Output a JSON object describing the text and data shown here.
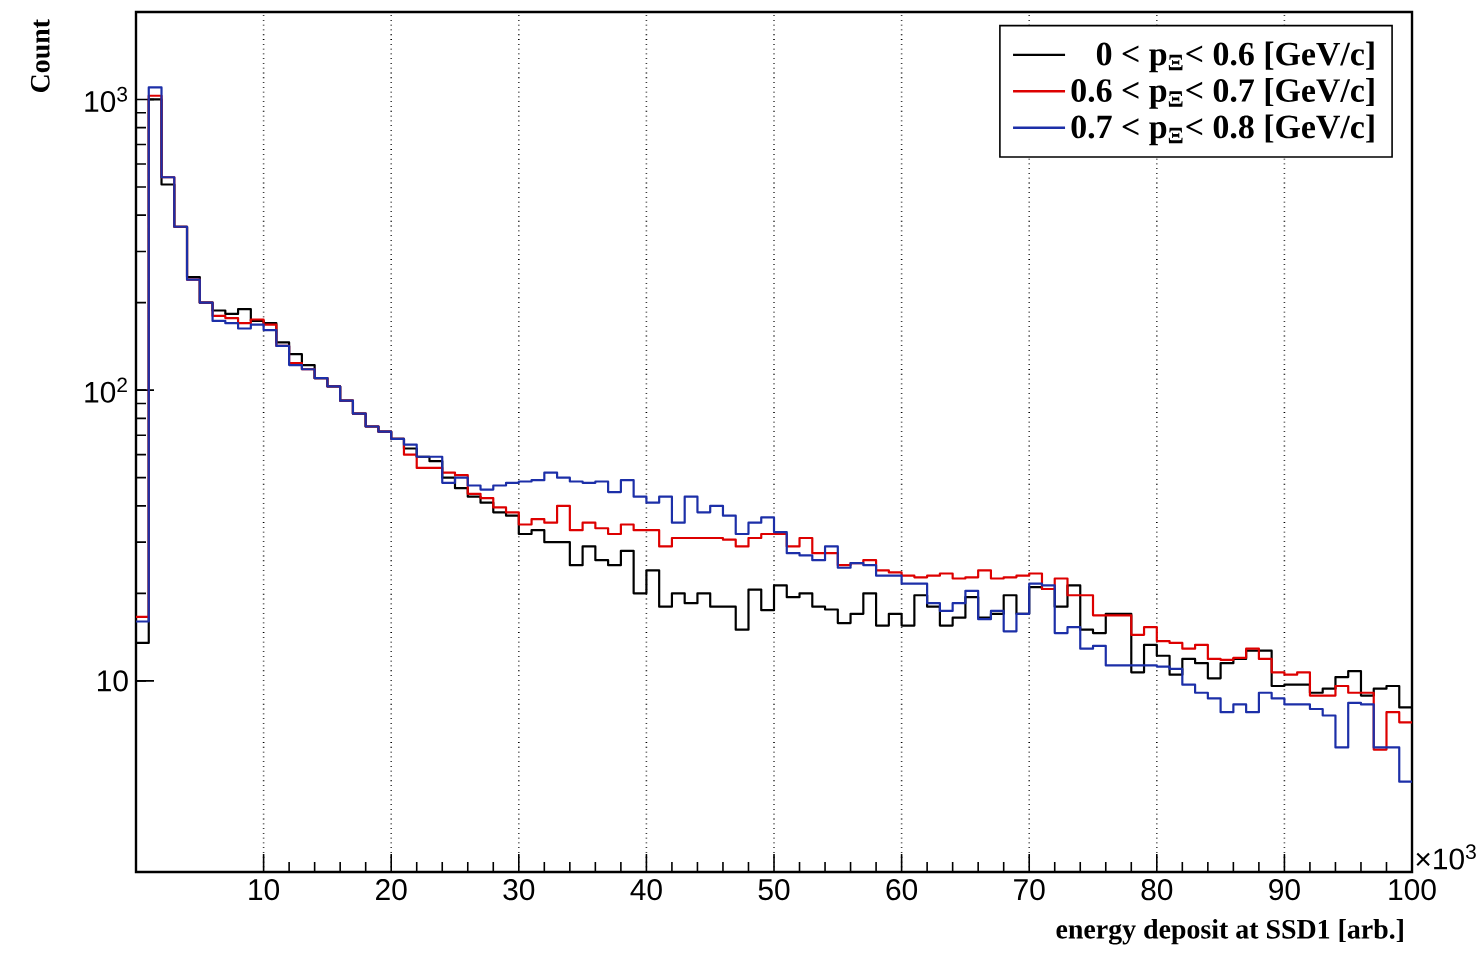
{
  "chart_data": {
    "type": "histogram",
    "xlabel": "energy deposit at SSD1 [arb.]",
    "ylabel": "Count",
    "log": "y",
    "grid": "x",
    "legend": "top right",
    "line_style": "solid",
    "marker": "none",
    "xlim": [
      0,
      100
    ],
    "ylim": [
      2.2,
      2000
    ],
    "xticks": [
      10,
      20,
      30,
      40,
      50,
      60,
      70,
      80,
      90,
      100
    ],
    "yticks": [
      {
        "value": 10,
        "label": "10"
      },
      {
        "value": 100,
        "label": "10$^{2}$"
      },
      {
        "value": 1000,
        "label": "10$^{3}$"
      }
    ],
    "annotations": [
      "×10$^{3}$"
    ],
    "bins": [
      0,
      1,
      2,
      3,
      4,
      5,
      6,
      7,
      8,
      9,
      10,
      11,
      12,
      13,
      14,
      15,
      16,
      17,
      18,
      19,
      20,
      21,
      22,
      23,
      24,
      25,
      26,
      27,
      28,
      29,
      30,
      31,
      32,
      33,
      34,
      35,
      36,
      37,
      38,
      39,
      40,
      41,
      42,
      43,
      44,
      45,
      46,
      47,
      48,
      49,
      50,
      51,
      52,
      53,
      54,
      55,
      56,
      57,
      58,
      59,
      60,
      61,
      62,
      63,
      64,
      65,
      66,
      67,
      68,
      69,
      70,
      71,
      72,
      73,
      74,
      75,
      76,
      77,
      78,
      79,
      80,
      81,
      82,
      83,
      84,
      85,
      86,
      87,
      88,
      89,
      90,
      91,
      92,
      93,
      94,
      95,
      96,
      97,
      98,
      99,
      100
    ],
    "series": [
      {
        "name": "0 < p$_{Ξ}$< 0.6 [GeV/c]",
        "color": "#000000",
        "values": [
          13.5,
          1000,
          510,
          365,
          245,
          200,
          188,
          183,
          190,
          173,
          170,
          146,
          133,
          122,
          110,
          103,
          92,
          83,
          75,
          72,
          68,
          63,
          59,
          57,
          50,
          46,
          43,
          41,
          38,
          37,
          32,
          33,
          30,
          30,
          25,
          29,
          26,
          25,
          28,
          20,
          24,
          18,
          20,
          18.5,
          20,
          18,
          18,
          15,
          20.6,
          17.5,
          21.3,
          19.4,
          20,
          18,
          17.6,
          15.8,
          17,
          20,
          15.5,
          17,
          15.5,
          19.7,
          18,
          15.5,
          16.5,
          19.4,
          16.5,
          17,
          19.7,
          17,
          21,
          20.7,
          18,
          21.3,
          15,
          14.6,
          17,
          17,
          10.7,
          13.3,
          12.2,
          10.5,
          11.9,
          11.5,
          10.2,
          11.5,
          11.9,
          12.7,
          12.7,
          9.6,
          9.7,
          9.7,
          9.1,
          9.4,
          10.3,
          10.8,
          8.9,
          9.4,
          9.6,
          8.1
        ]
      },
      {
        "name": "0.6 < p$_{Ξ}$< 0.7 [GeV/c]",
        "color": "#dd0000",
        "values": [
          16.6,
          1030,
          540,
          365,
          240,
          200,
          180,
          177,
          170,
          175,
          168,
          142,
          124,
          118,
          110,
          103,
          92,
          83,
          75,
          72,
          68,
          60,
          54,
          54,
          52,
          51,
          44,
          42.5,
          39.5,
          38,
          34.5,
          36,
          35,
          40,
          33,
          35,
          33.5,
          32,
          34.5,
          33,
          33,
          29,
          31,
          31,
          31,
          31,
          30.6,
          29,
          31,
          32,
          32,
          29,
          31,
          27.5,
          27.5,
          25,
          25.4,
          26,
          24,
          23.6,
          23,
          22.7,
          23,
          23.4,
          22.5,
          22.7,
          24,
          22.5,
          22.7,
          23,
          23.4,
          20.7,
          22.5,
          19.7,
          19.7,
          16.8,
          16.8,
          16.8,
          14.4,
          15.3,
          13.7,
          13.5,
          12.9,
          13.3,
          11.9,
          11.8,
          12,
          12.9,
          11.9,
          10.7,
          10.5,
          10.7,
          8.9,
          8.9,
          9.6,
          9.1,
          9.1,
          5.8,
          7.8,
          7.2
        ]
      },
      {
        "name": "0.7 < p$_{Ξ}$< 0.8 [GeV/c]",
        "color": "#1c2fa8",
        "values": [
          16,
          1100,
          540,
          365,
          240,
          200,
          173,
          170,
          163,
          168,
          161,
          142,
          122,
          118,
          110,
          103,
          92,
          83,
          75,
          72,
          68,
          65,
          59,
          59,
          48,
          50,
          47,
          45.5,
          47,
          48,
          48.5,
          49,
          52,
          50,
          48.5,
          48,
          48.5,
          44.6,
          49,
          43,
          41,
          43,
          35,
          43,
          38,
          40,
          37,
          32,
          35,
          36.5,
          32.5,
          27.5,
          27,
          26,
          29,
          24.5,
          25.4,
          25,
          23,
          23,
          21.6,
          21.6,
          18.5,
          17.4,
          18.5,
          20.4,
          16.3,
          17.4,
          14.8,
          17,
          21.6,
          21.3,
          14.6,
          15.3,
          12.9,
          13.2,
          11.3,
          11.3,
          11.3,
          11.3,
          11.2,
          11,
          9.7,
          9.1,
          8.7,
          7.8,
          8.3,
          7.8,
          9.1,
          8.7,
          8.3,
          8.3,
          8,
          7.6,
          5.9,
          8.4,
          8.3,
          5.9,
          5.9,
          4.5
        ]
      }
    ]
  }
}
